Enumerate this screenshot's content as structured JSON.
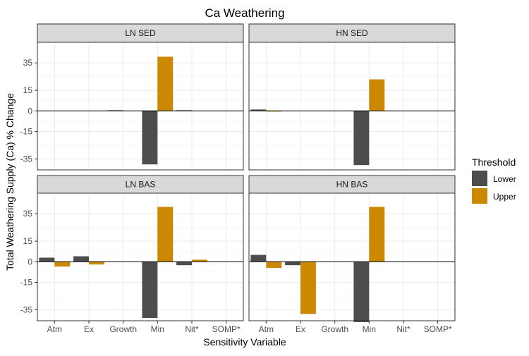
{
  "chart_data": {
    "type": "bar",
    "title": "Ca Weathering",
    "xlabel": "Sensitivity Variable",
    "ylabel": "Total Weathering Supply (Ca) % Change",
    "categories": [
      "Atm",
      "Ex",
      "Growth",
      "Min",
      "Nit*",
      "SOMP*"
    ],
    "yticks": [
      -35,
      -15,
      0,
      15,
      35
    ],
    "ylim": [
      -43,
      50
    ],
    "grid": true,
    "legend": {
      "title": "Threshold",
      "placement": "right",
      "entries": [
        {
          "name": "Lower",
          "color": "#4d4d4d"
        },
        {
          "name": "Upper",
          "color": "#cc8800"
        }
      ]
    },
    "panels": [
      {
        "label": "LN SED",
        "series": [
          {
            "name": "Lower",
            "values": [
              0,
              0,
              0.5,
              -39,
              0.5,
              0
            ]
          },
          {
            "name": "Upper",
            "values": [
              0,
              0,
              0,
              39.5,
              0,
              0
            ]
          }
        ]
      },
      {
        "label": "HN SED",
        "series": [
          {
            "name": "Lower",
            "values": [
              1,
              0,
              0,
              -39.5,
              0,
              0
            ]
          },
          {
            "name": "Upper",
            "values": [
              -0.5,
              0,
              0,
              23,
              0,
              0
            ]
          }
        ]
      },
      {
        "label": "LN BAS",
        "series": [
          {
            "name": "Lower",
            "values": [
              3,
              4,
              0,
              -41,
              -2.5,
              0
            ]
          },
          {
            "name": "Upper",
            "values": [
              -3.5,
              -2,
              0,
              40,
              1.5,
              0
            ]
          }
        ]
      },
      {
        "label": "HN BAS",
        "series": [
          {
            "name": "Lower",
            "values": [
              5,
              -2.5,
              0,
              -44,
              0,
              0
            ]
          },
          {
            "name": "Upper",
            "values": [
              -4.5,
              -38,
              0,
              40,
              0,
              0
            ]
          }
        ]
      }
    ]
  }
}
